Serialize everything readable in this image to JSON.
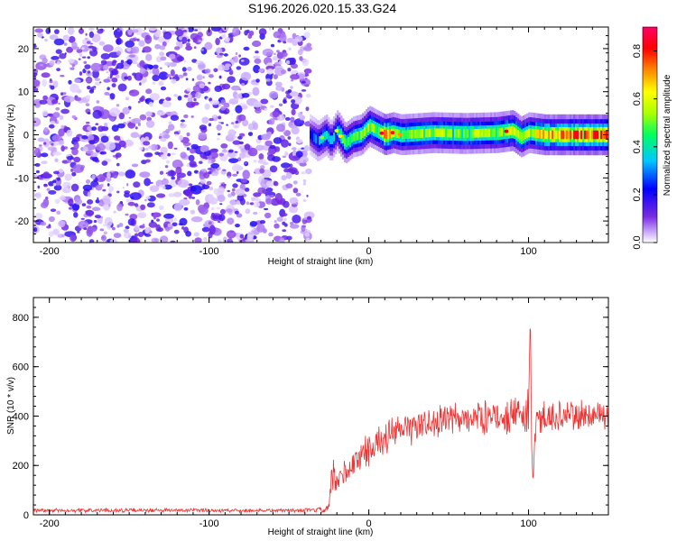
{
  "figure_title": "S196.2026.020.15.33.G24",
  "chart_data": [
    {
      "type": "heatmap",
      "title": "S196.2026.020.15.33.G24",
      "xlabel": "Height of straight line (km)",
      "ylabel": "Frequency (Hz)",
      "xlim": [
        -210,
        150
      ],
      "ylim": [
        -25,
        25
      ],
      "xticks": [
        -200,
        -100,
        0,
        100
      ],
      "yticks": [
        -20,
        -10,
        0,
        10,
        20
      ],
      "colorbar": {
        "label": "Normalized spectral amplitude",
        "range": [
          0,
          0.9
        ],
        "ticks": [
          0.0,
          0.2,
          0.4,
          0.6,
          0.8
        ],
        "colors": [
          "#ffffff",
          "#c8a8ff",
          "#7a2be0",
          "#0000ff",
          "#00c8ff",
          "#00ff60",
          "#aaff00",
          "#ffff00",
          "#ff8800",
          "#ff0000",
          "#ff0066"
        ]
      },
      "noise_region_x": [
        -210,
        -37
      ],
      "noise_amplitude_range": [
        0.02,
        0.2
      ],
      "signal_track": {
        "x": [
          -37,
          -32,
          -27,
          -24,
          -20,
          -15,
          -10,
          -5,
          0,
          5,
          10,
          15,
          20,
          40,
          60,
          80,
          90,
          95,
          100,
          110,
          130,
          150
        ],
        "frequency": [
          0,
          -1.5,
          0,
          -1.5,
          1,
          -2,
          -0.5,
          0,
          2,
          1,
          0,
          0.5,
          0,
          0.5,
          0.3,
          0.5,
          1,
          -0.5,
          0.5,
          0,
          0,
          0
        ],
        "amplitude": [
          0.25,
          0.35,
          0.4,
          0.35,
          0.45,
          0.55,
          0.5,
          0.55,
          0.6,
          0.55,
          0.8,
          0.65,
          0.55,
          0.6,
          0.6,
          0.6,
          0.7,
          0.65,
          0.6,
          0.75,
          0.85,
          0.85
        ],
        "bandwidth_hz": 2.5
      }
    },
    {
      "type": "line",
      "xlabel": "Height of straight line (km)",
      "ylabel": "SNR (10 * v/v)",
      "xlim": [
        -210,
        150
      ],
      "ylim": [
        0,
        880
      ],
      "xticks": [
        -200,
        -100,
        0,
        100
      ],
      "yticks": [
        0,
        200,
        400,
        600,
        800
      ],
      "series": [
        {
          "name": "SNR",
          "color": "#ee3333",
          "x": [
            -210,
            -37,
            -25,
            -24,
            -20,
            -15,
            -10,
            -5,
            0,
            5,
            10,
            20,
            30,
            40,
            50,
            60,
            70,
            80,
            90,
            95,
            98,
            100,
            101,
            102,
            103,
            105,
            110,
            120,
            130,
            140,
            150
          ],
          "mean": [
            18,
            18,
            20,
            150,
            120,
            170,
            200,
            240,
            270,
            290,
            310,
            340,
            360,
            375,
            385,
            390,
            395,
            398,
            400,
            400,
            410,
            420,
            800,
            300,
            150,
            380,
            400,
            400,
            400,
            405,
            410
          ],
          "spread": [
            10,
            10,
            25,
            120,
            80,
            80,
            80,
            80,
            80,
            80,
            80,
            80,
            80,
            80,
            80,
            80,
            80,
            80,
            80,
            80,
            160,
            200,
            100,
            150,
            100,
            80,
            80,
            80,
            80,
            80,
            80
          ]
        }
      ]
    }
  ]
}
